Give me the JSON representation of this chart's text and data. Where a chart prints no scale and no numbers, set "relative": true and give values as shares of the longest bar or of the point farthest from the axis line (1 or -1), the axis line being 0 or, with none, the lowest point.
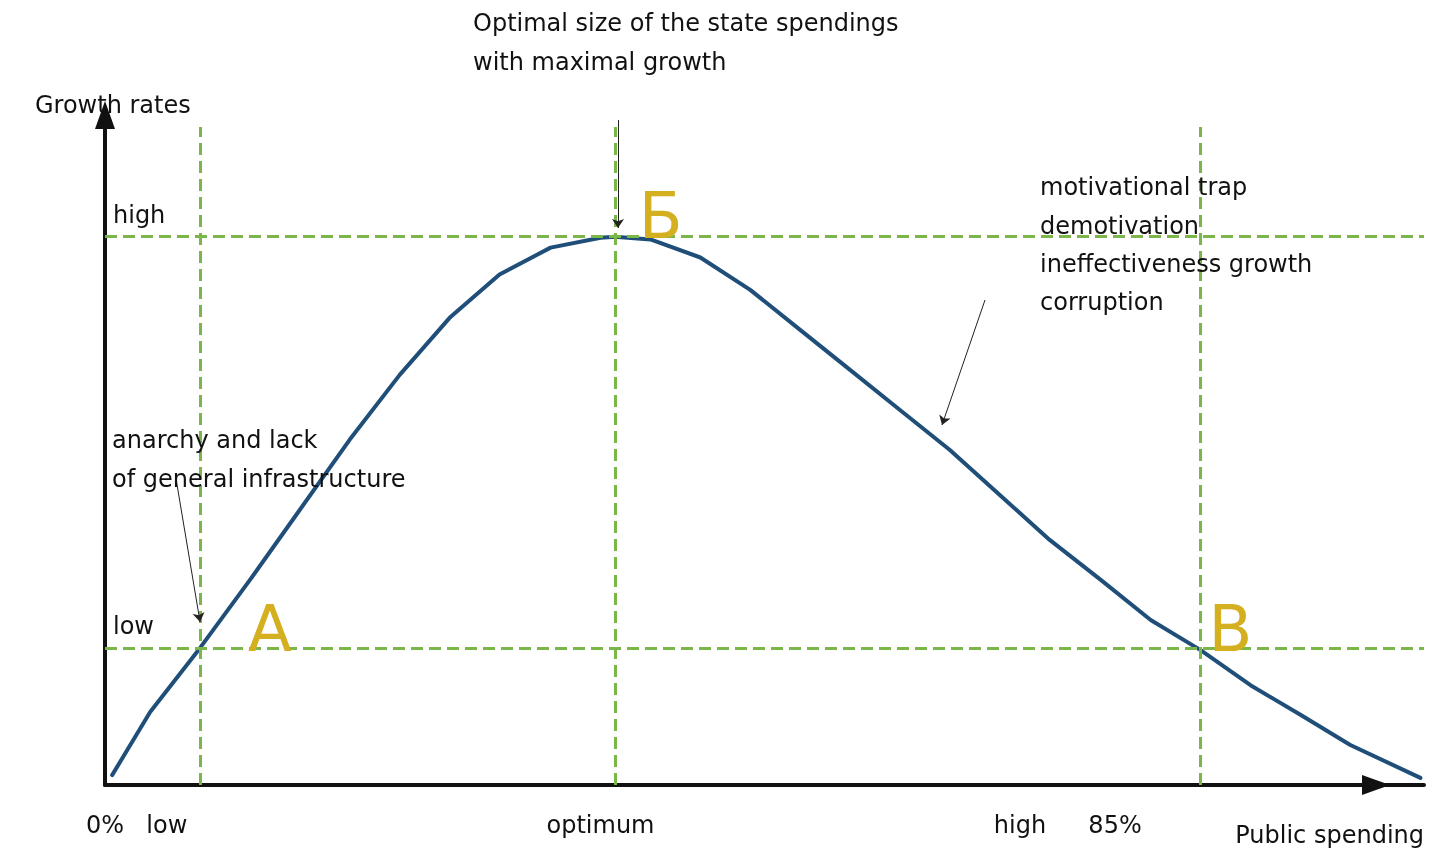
{
  "chart_data": {
    "type": "line",
    "relative": true,
    "xlabel": "Public spending",
    "ylabel": "Growth rates",
    "x": [
      0.6,
      3.8,
      8.0,
      12.2,
      16.4,
      20.6,
      24.8,
      29.0,
      33.2,
      37.5,
      41.7,
      42.9,
      45.9,
      50.1,
      54.3,
      58.5,
      62.7,
      66.9,
      71.1,
      75.3,
      79.5,
      83.8,
      88.0,
      92.2,
      96.4,
      100.6,
      104.8,
      110.7
    ],
    "series": [
      {
        "color": "#1f4e79",
        "values": [
          0.018,
          0.133,
          0.25,
          0.374,
          0.502,
          0.63,
          0.748,
          0.852,
          0.931,
          0.98,
          0.998,
          1,
          0.995,
          0.962,
          0.903,
          0.83,
          0.757,
          0.684,
          0.611,
          0.529,
          0.447,
          0.374,
          0.301,
          0.246,
          0.182,
          0.128,
          0.073,
          0.013
        ]
      }
    ],
    "xlim": [
      0,
      111
    ],
    "xticks": [
      {
        "value": 0,
        "label": "0%"
      },
      {
        "value": 5.2,
        "label": "low"
      },
      {
        "value": 41.7,
        "label": "optimum"
      },
      {
        "value": 77,
        "label": "high"
      },
      {
        "value": 85,
        "label": "85%"
      }
    ],
    "ref_lines": [
      {
        "axis": "y",
        "value": 1,
        "label": "high",
        "color": "#7ab648",
        "line_style": "dashed"
      },
      {
        "axis": "y",
        "value": 0.247,
        "label": "low",
        "color": "#7ab648",
        "line_style": "dashed"
      },
      {
        "axis": "x",
        "value": 8.0,
        "label": null,
        "color": "#7ab648",
        "line_style": "dashed"
      },
      {
        "axis": "x",
        "value": 42.9,
        "label": null,
        "color": "#7ab648",
        "line_style": "dashed"
      },
      {
        "axis": "x",
        "value": 92.2,
        "label": null,
        "color": "#7ab648",
        "line_style": "dashed"
      }
    ],
    "annotations": [
      "Optimal size of the state spendings\nwith maximal growth",
      "motivational trap\ndemotivation\nineffectiveness growth\ncorruption",
      {
        "text": "anarchy and lack\nof general infrastructure",
        "x": 8.0,
        "y": 0.29
      },
      {
        "text": "А",
        "x": 8.0,
        "y": 0.247
      },
      {
        "text": "Б",
        "x": 42.9,
        "y": 1
      },
      {
        "text": "В",
        "x": 92.2,
        "y": 0.246
      }
    ],
    "marker": "none",
    "line_style": "solid",
    "grid": false
  }
}
